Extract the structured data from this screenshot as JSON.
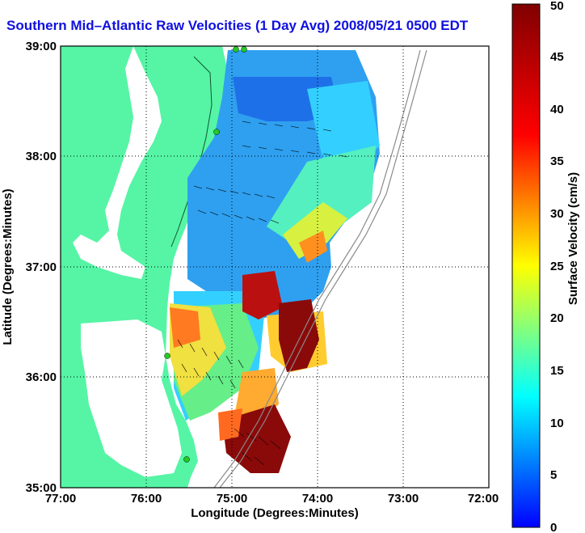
{
  "title": "Southern Mid–Atlantic Raw Velocities (1 Day Avg) 2008/05/21 0500 EDT",
  "axes": {
    "xlabel": "Longitude (Degrees:Minutes)",
    "ylabel": "Latitude (Degrees:Minutes)",
    "x_ticks": [
      "77:00",
      "76:00",
      "75:00",
      "74:00",
      "73:00",
      "72:00"
    ],
    "y_ticks": [
      "39:00",
      "38:00",
      "37:00",
      "36:00",
      "35:00"
    ],
    "xlim": [
      -77,
      -72
    ],
    "ylim": [
      35,
      39
    ],
    "grid": "dotted"
  },
  "colorbar": {
    "label": "Surface Velocity (cm/s)",
    "range": [
      0,
      50
    ],
    "ticks": [
      "0",
      "5",
      "10",
      "15",
      "20",
      "25",
      "30",
      "35",
      "40",
      "45",
      "50"
    ]
  },
  "colors": {
    "land": "#55f5a5",
    "title": "#1010e0",
    "grid": "#000000",
    "station": "#22cc22"
  }
}
